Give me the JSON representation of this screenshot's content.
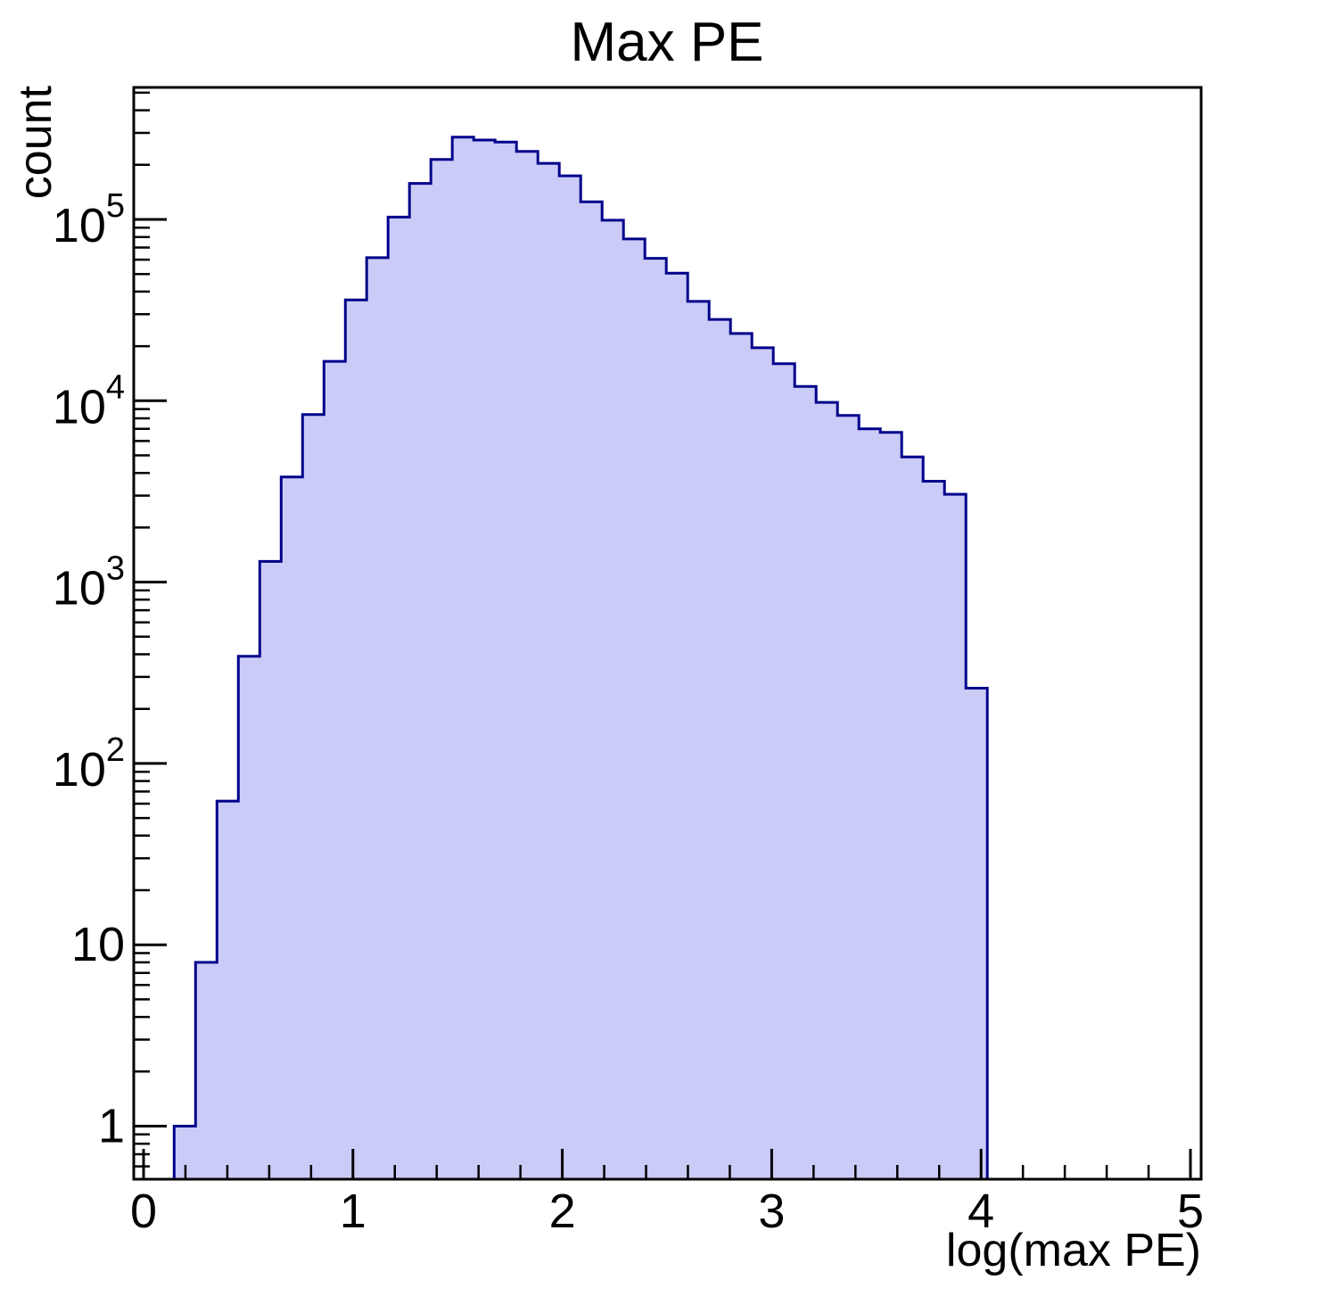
{
  "chart_data": {
    "type": "histogram",
    "title": "Max PE",
    "xlabel": "log(max PE)",
    "ylabel": "count",
    "x_scale": "linear",
    "y_scale": "log",
    "xlim": [
      -0.05,
      5.05
    ],
    "ylim": [
      0.5,
      535000
    ],
    "grid": false,
    "legend": "none",
    "bin_start": 0.146,
    "bin_width": 0.1022,
    "counts": [
      1,
      8,
      62,
      390,
      1300,
      3800,
      8400,
      16500,
      36000,
      61500,
      103000,
      158000,
      214000,
      284000,
      274000,
      267000,
      237000,
      204000,
      174000,
      125000,
      99000,
      78000,
      61000,
      50500,
      35300,
      28100,
      23500,
      19600,
      16000,
      12000,
      9800,
      8300,
      7000,
      6700,
      4900,
      3600,
      3050,
      260
    ],
    "x_major_ticks": [
      {
        "v": 0,
        "label": "0"
      },
      {
        "v": 1,
        "label": "1"
      },
      {
        "v": 2,
        "label": "2"
      },
      {
        "v": 3,
        "label": "3"
      },
      {
        "v": 4,
        "label": "4"
      },
      {
        "v": 5,
        "label": "5"
      }
    ],
    "x_minor_tick_step": 0.2,
    "y_major_ticks": [
      {
        "v": 1,
        "base": "1",
        "exp": ""
      },
      {
        "v": 10,
        "base": "10",
        "exp": ""
      },
      {
        "v": 100,
        "base": "10",
        "exp": "2"
      },
      {
        "v": 1000,
        "base": "10",
        "exp": "3"
      },
      {
        "v": 10000,
        "base": "10",
        "exp": "4"
      },
      {
        "v": 100000,
        "base": "10",
        "exp": "5"
      }
    ],
    "colors": {
      "hist_fill": "#cbcbf8",
      "hist_line": "#00008b",
      "frame": "#000000",
      "background": "#ffffff",
      "text": "#000000"
    }
  }
}
